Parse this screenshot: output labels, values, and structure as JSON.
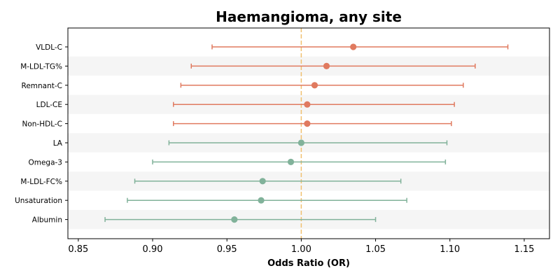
{
  "chart_data": {
    "type": "forest",
    "title": "Haemangioma, any site",
    "xlabel": "Odds Ratio (OR)",
    "xlim": [
      0.843,
      1.167
    ],
    "xticks": [
      0.85,
      0.9,
      0.95,
      1.0,
      1.05,
      1.1,
      1.15
    ],
    "xtick_labels": [
      "0.85",
      "0.90",
      "0.95",
      "1.00",
      "1.05",
      "1.10",
      "1.15"
    ],
    "reference_line": 1.0,
    "reference_color": "#f0c070",
    "colors": {
      "positive": "#e07a5f",
      "negative": "#81b29a",
      "band": "#f5f5f5"
    },
    "rows": [
      {
        "label": "VLDL-C",
        "or": 1.035,
        "lower": 0.94,
        "upper": 1.139,
        "group": "positive"
      },
      {
        "label": "M-LDL-TG%",
        "or": 1.017,
        "lower": 0.926,
        "upper": 1.117,
        "group": "positive"
      },
      {
        "label": "Remnant-C",
        "or": 1.009,
        "lower": 0.919,
        "upper": 1.109,
        "group": "positive"
      },
      {
        "label": "LDL-CE",
        "or": 1.004,
        "lower": 0.914,
        "upper": 1.103,
        "group": "positive"
      },
      {
        "label": "Non-HDL-C",
        "or": 1.004,
        "lower": 0.914,
        "upper": 1.101,
        "group": "positive"
      },
      {
        "label": "LA",
        "or": 1.0,
        "lower": 0.911,
        "upper": 1.098,
        "group": "negative"
      },
      {
        "label": "Omega-3",
        "or": 0.993,
        "lower": 0.9,
        "upper": 1.097,
        "group": "negative"
      },
      {
        "label": "M-LDL-FC%",
        "or": 0.974,
        "lower": 0.888,
        "upper": 1.067,
        "group": "negative"
      },
      {
        "label": "Unsaturation",
        "or": 0.973,
        "lower": 0.883,
        "upper": 1.071,
        "group": "negative"
      },
      {
        "label": "Albumin",
        "or": 0.955,
        "lower": 0.868,
        "upper": 1.05,
        "group": "negative"
      }
    ]
  }
}
